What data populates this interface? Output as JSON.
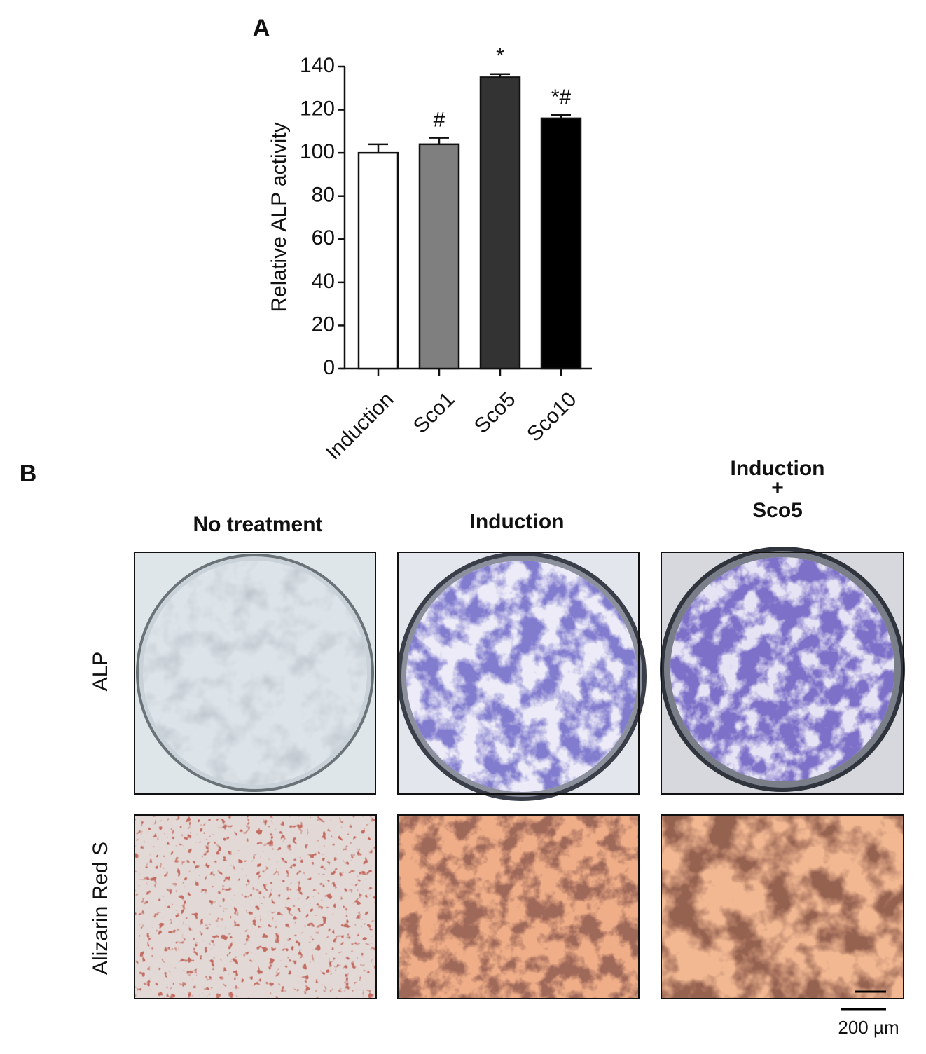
{
  "chart_data": {
    "type": "bar",
    "panel_label": "A",
    "y_label": "Relative ALP activity",
    "categories": [
      "Induction",
      "Sco1",
      "Sco5",
      "Sco10"
    ],
    "values": [
      100,
      104,
      135,
      116
    ],
    "errors": [
      4,
      3,
      1.5,
      1.5
    ],
    "colors": [
      "#ffffff",
      "#7f7f7f",
      "#333333",
      "#000000"
    ],
    "annotations": [
      null,
      "#",
      "*",
      "*#"
    ],
    "ylim": [
      0,
      140
    ],
    "yticks": [
      0,
      20,
      40,
      60,
      80,
      100,
      120,
      140
    ]
  },
  "panel_b": {
    "label": "B",
    "columns": [
      "No treatment",
      "Induction",
      [
        "Induction",
        "+",
        "Sco5"
      ]
    ],
    "rows": [
      "ALP",
      "Alizarin Red S"
    ],
    "scale_bar": "200 µm"
  }
}
